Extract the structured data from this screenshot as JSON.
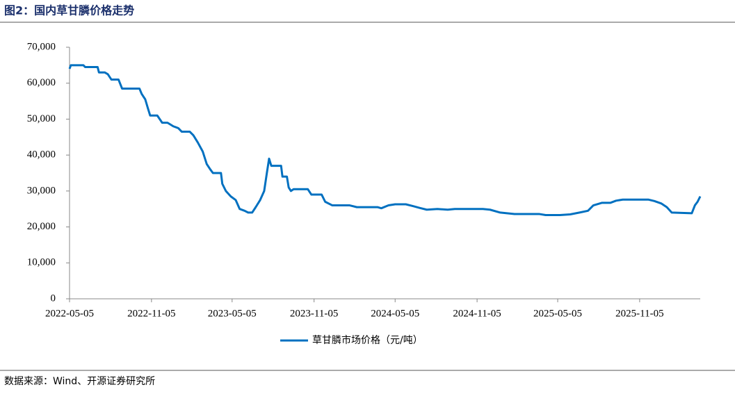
{
  "chart_data": {
    "type": "line",
    "title": "图2：国内草甘膦价格走势",
    "source": "数据来源：Wind、开源证券研究所",
    "x": [
      "2022-05-05",
      "2022-05-08",
      "2022-06-05",
      "2022-06-09",
      "2022-07-07",
      "2022-07-10",
      "2022-07-23",
      "2022-07-30",
      "2022-08-07",
      "2022-08-23",
      "2022-08-31",
      "2022-10-09",
      "2022-10-14",
      "2022-10-22",
      "2022-10-28",
      "2022-11-02",
      "2022-11-18",
      "2022-11-29",
      "2022-12-11",
      "2022-12-24",
      "2023-01-04",
      "2023-01-12",
      "2023-01-30",
      "2023-02-07",
      "2023-02-17",
      "2023-02-28",
      "2023-03-09",
      "2023-03-17",
      "2023-03-23",
      "2023-04-10",
      "2023-04-13",
      "2023-04-21",
      "2023-05-02",
      "2023-05-13",
      "2023-05-22",
      "2023-06-02",
      "2023-06-10",
      "2023-06-19",
      "2023-06-27",
      "2023-07-07",
      "2023-07-16",
      "2023-07-22",
      "2023-07-27",
      "2023-08-01",
      "2023-08-23",
      "2023-08-26",
      "2023-09-05",
      "2023-09-09",
      "2023-09-14",
      "2023-09-20",
      "2023-10-22",
      "2023-10-30",
      "2023-11-22",
      "2023-11-30",
      "2023-12-16",
      "2024-01-24",
      "2024-02-09",
      "2024-03-27",
      "2024-04-04",
      "2024-04-20",
      "2024-05-05",
      "2024-05-29",
      "2024-06-14",
      "2024-06-29",
      "2024-07-15",
      "2024-08-08",
      "2024-08-31",
      "2024-09-16",
      "2024-11-18",
      "2024-12-04",
      "2024-12-27",
      "2025-01-28",
      "2025-03-24",
      "2025-04-08",
      "2025-05-10",
      "2025-06-02",
      "2025-06-23",
      "2025-07-12",
      "2025-07-24",
      "2025-08-12",
      "2025-08-31",
      "2025-09-13",
      "2025-09-28",
      "2025-11-25",
      "2025-12-08",
      "2025-12-24",
      "2026-01-05",
      "2026-01-16",
      "2026-03-02",
      "2026-03-09",
      "2026-03-15",
      "2026-03-21"
    ],
    "series": [
      {
        "name": "草甘膦市场价格（元/吨）",
        "color": "#0070c0",
        "values": [
          64000,
          65000,
          65000,
          64500,
          64500,
          63000,
          63000,
          62500,
          61000,
          61000,
          58500,
          58500,
          57000,
          55500,
          53000,
          51000,
          51000,
          49000,
          49000,
          48000,
          47500,
          46500,
          46500,
          45500,
          43500,
          41000,
          37500,
          36000,
          35000,
          35000,
          32000,
          30000,
          28500,
          27500,
          25000,
          24500,
          24000,
          24000,
          25500,
          27500,
          30000,
          35000,
          39000,
          37000,
          37000,
          34000,
          34000,
          31000,
          30000,
          30500,
          30500,
          29000,
          29000,
          27000,
          26000,
          26000,
          25500,
          25500,
          25200,
          26000,
          26300,
          26300,
          25800,
          25300,
          24800,
          25000,
          24800,
          25000,
          25000,
          24800,
          24000,
          23600,
          23600,
          23300,
          23300,
          23500,
          24000,
          24500,
          26000,
          26700,
          26700,
          27300,
          27600,
          27600,
          27200,
          26500,
          25500,
          24000,
          23800,
          26000,
          27000,
          28500
        ]
      }
    ],
    "xlim": [
      "2022-05-05",
      "2026-03-21"
    ],
    "xticks": [
      "2022-05-05",
      "2022-11-05",
      "2023-05-05",
      "2023-11-05",
      "2024-05-05",
      "2024-11-05",
      "2025-05-05",
      "2025-11-05"
    ],
    "ylim": [
      0,
      70000
    ],
    "yticks": [
      0,
      {
        "value": 10000,
        "label": "10,000"
      },
      {
        "value": 20000,
        "label": "20,000"
      },
      {
        "value": 30000,
        "label": "30,000"
      },
      {
        "value": 40000,
        "label": "40,000"
      },
      {
        "value": 50000,
        "label": "50,000"
      },
      {
        "value": 60000,
        "label": "60,000"
      },
      {
        "value": 70000,
        "label": "70,000"
      }
    ],
    "grid": false
  }
}
